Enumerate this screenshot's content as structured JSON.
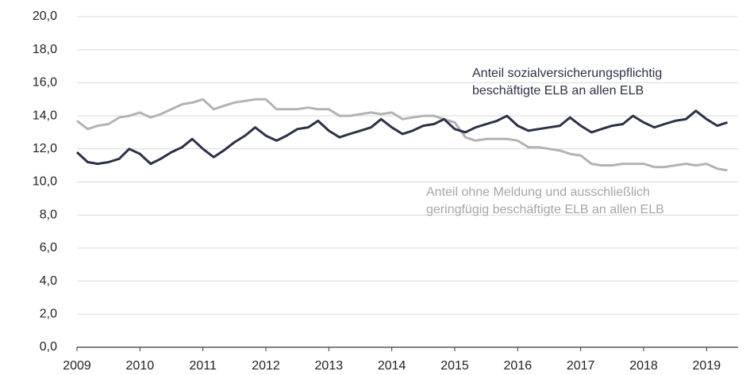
{
  "chart_data": {
    "type": "line",
    "x": [
      2009,
      2009.17,
      2009.33,
      2009.5,
      2009.67,
      2009.83,
      2010,
      2010.17,
      2010.33,
      2010.5,
      2010.67,
      2010.83,
      2011,
      2011.17,
      2011.33,
      2011.5,
      2011.67,
      2011.83,
      2012,
      2012.17,
      2012.33,
      2012.5,
      2012.67,
      2012.83,
      2013,
      2013.17,
      2013.33,
      2013.5,
      2013.67,
      2013.83,
      2014,
      2014.17,
      2014.33,
      2014.5,
      2014.67,
      2014.83,
      2015,
      2015.17,
      2015.33,
      2015.5,
      2015.67,
      2015.83,
      2016,
      2016.17,
      2016.33,
      2016.5,
      2016.67,
      2016.83,
      2017,
      2017.17,
      2017.33,
      2017.5,
      2017.67,
      2017.83,
      2018,
      2018.17,
      2018.33,
      2018.5,
      2018.67,
      2018.83,
      2019,
      2019.17,
      2019.33
    ],
    "series": [
      {
        "label": [
          "Anteil sozialversicherungspflichtig",
          "beschäftigte ELB an allen ELB"
        ],
        "color": "#2b3148",
        "values": [
          11.8,
          11.2,
          11.1,
          11.2,
          11.4,
          12.0,
          11.7,
          11.1,
          11.4,
          11.8,
          12.1,
          12.6,
          12.0,
          11.5,
          11.9,
          12.4,
          12.8,
          13.3,
          12.8,
          12.5,
          12.8,
          13.2,
          13.3,
          13.7,
          13.1,
          12.7,
          12.9,
          13.1,
          13.3,
          13.8,
          13.3,
          12.9,
          13.1,
          13.4,
          13.5,
          13.8,
          13.2,
          13.0,
          13.3,
          13.5,
          13.7,
          14.0,
          13.4,
          13.1,
          13.2,
          13.3,
          13.4,
          13.9,
          13.4,
          13.0,
          13.2,
          13.4,
          13.5,
          14.0,
          13.6,
          13.3,
          13.5,
          13.7,
          13.8,
          14.3,
          13.8,
          13.4,
          13.6
        ]
      },
      {
        "label": [
          "Anteil  ohne Meldung und ausschließlich",
          "geringfügig beschäftigte ELB an allen ELB"
        ],
        "color": "#b3b3b3",
        "values": [
          13.7,
          13.2,
          13.4,
          13.5,
          13.9,
          14.0,
          14.2,
          13.9,
          14.1,
          14.4,
          14.7,
          14.8,
          15.0,
          14.4,
          14.6,
          14.8,
          14.9,
          15.0,
          15.0,
          14.4,
          14.4,
          14.4,
          14.5,
          14.4,
          14.4,
          14.0,
          14.0,
          14.1,
          14.2,
          14.1,
          14.2,
          13.8,
          13.9,
          14.0,
          14.0,
          13.8,
          13.6,
          12.7,
          12.5,
          12.6,
          12.6,
          12.6,
          12.5,
          12.1,
          12.1,
          12.0,
          11.9,
          11.7,
          11.6,
          11.1,
          11.0,
          11.0,
          11.1,
          11.1,
          11.1,
          10.9,
          10.9,
          11.0,
          11.1,
          11.0,
          11.1,
          10.8,
          10.7
        ]
      }
    ],
    "xlim": [
      2009,
      2019.5
    ],
    "xticks": [
      2009,
      2010,
      2011,
      2012,
      2013,
      2014,
      2015,
      2016,
      2017,
      2018,
      2019
    ],
    "ylim": [
      0,
      20
    ],
    "yticks": [
      {
        "value": 0,
        "label": "0,0"
      },
      {
        "value": 2,
        "label": "2,0"
      },
      {
        "value": 4,
        "label": "4,0"
      },
      {
        "value": 6,
        "label": "6,0"
      },
      {
        "value": 8,
        "label": "8,0"
      },
      {
        "value": 10,
        "label": "10,0"
      },
      {
        "value": 12,
        "label": "12,0"
      },
      {
        "value": 14,
        "label": "14,0"
      },
      {
        "value": 16,
        "label": "16,0"
      },
      {
        "value": 18,
        "label": "18,0"
      },
      {
        "value": 20,
        "label": "20,0"
      }
    ],
    "grid": true
  }
}
